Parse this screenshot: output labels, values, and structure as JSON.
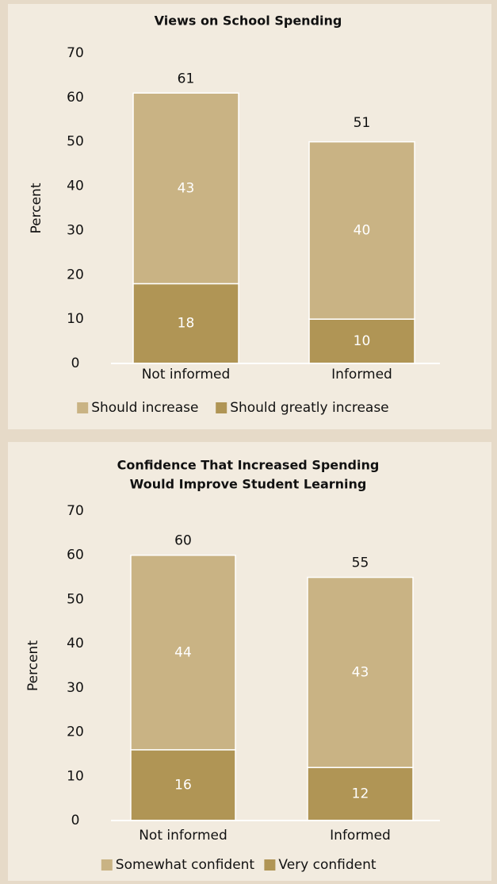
{
  "chart_data": [
    {
      "type": "stacked_bar",
      "title": [
        "Views on School Spending"
      ],
      "y_label": "Percent",
      "categories": [
        "Not informed",
        "Informed"
      ],
      "series": [
        {
          "name": "Should greatly increase",
          "color": "#b09555",
          "values": [
            18,
            10
          ]
        },
        {
          "name": "Should increase",
          "color": "#c9b384",
          "values": [
            43,
            40
          ]
        }
      ],
      "totals": [
        61,
        51
      ],
      "ylim": [
        0,
        70
      ],
      "yticks": [
        0,
        10,
        20,
        30,
        40,
        50,
        60,
        70
      ]
    },
    {
      "type": "stacked_bar",
      "title": [
        "Confidence That Increased Spending",
        "Would Improve Student Learning"
      ],
      "y_label": "Percent",
      "categories": [
        "Not informed",
        "Informed"
      ],
      "series": [
        {
          "name": "Very confident",
          "color": "#b09555",
          "values": [
            16,
            12
          ]
        },
        {
          "name": "Somewhat confident",
          "color": "#c9b384",
          "values": [
            44,
            43
          ]
        }
      ],
      "totals": [
        60,
        55
      ],
      "ylim": [
        0,
        70
      ],
      "yticks": [
        0,
        10,
        20,
        30,
        40,
        50,
        60,
        70
      ]
    }
  ]
}
